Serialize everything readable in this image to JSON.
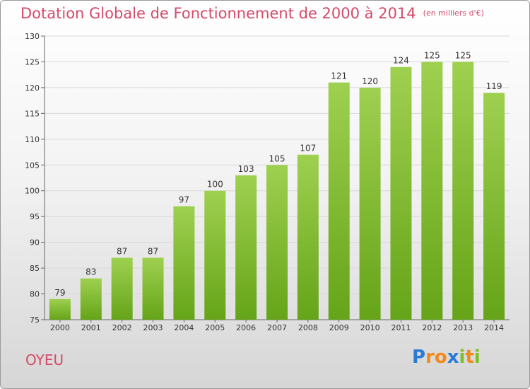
{
  "title": "Dotation Globale de Fonctionnement de 2000 à 2014",
  "unit": "(en milliers d'€)",
  "place": "OYEU",
  "logo": {
    "text": "Proxiti",
    "letters": [
      {
        "char": "P",
        "color": "#2a7bd5"
      },
      {
        "char": "r",
        "color": "#f08a1c"
      },
      {
        "char": "o",
        "color": "#f08a1c"
      },
      {
        "char": "x",
        "color": "#2a7bd5"
      },
      {
        "char": "i",
        "color": "#7cbf2a"
      },
      {
        "char": "t",
        "color": "#f08a1c"
      },
      {
        "char": "i",
        "color": "#7cbf2a"
      }
    ]
  },
  "colors": {
    "title": "#d44a6a",
    "bar_top": "#9fd050",
    "bar_bottom": "#65a418"
  },
  "chart_data": {
    "type": "bar",
    "categories": [
      "2000",
      "2001",
      "2002",
      "2003",
      "2004",
      "2005",
      "2006",
      "2007",
      "2008",
      "2009",
      "2010",
      "2011",
      "2012",
      "2013",
      "2014"
    ],
    "values": [
      79,
      83,
      87,
      87,
      97,
      100,
      103,
      105,
      107,
      121,
      120,
      124,
      125,
      125,
      119
    ],
    "ylim": [
      75,
      130
    ],
    "yticks": [
      75,
      80,
      85,
      90,
      95,
      100,
      105,
      110,
      115,
      120,
      125,
      130
    ],
    "grid": true,
    "xlabel": "",
    "ylabel": ""
  }
}
